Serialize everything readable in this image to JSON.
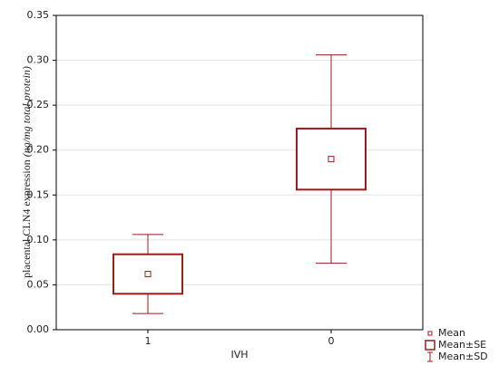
{
  "chart_data": {
    "type": "mean-error-box",
    "y_label": "placental CLN4 expression",
    "y_label_unit": "(ng/mg total protein)",
    "x_label": "IVH",
    "categories": [
      "1",
      "0"
    ],
    "series": [
      {
        "name": "Mean",
        "values": [
          0.062,
          0.19
        ]
      },
      {
        "name": "Mean±SE",
        "values": [
          0.022,
          0.034
        ]
      },
      {
        "name": "Mean±SD",
        "values": [
          0.044,
          0.116
        ]
      }
    ],
    "color": "#9b1c1c",
    "ylim": [
      0,
      0.35
    ],
    "yticks": [
      {
        "value": 0,
        "label": "0.00"
      },
      {
        "value": 0.05,
        "label": "0.05"
      },
      {
        "value": 0.1,
        "label": "0.10"
      },
      {
        "value": 0.15,
        "label": "0.15"
      },
      {
        "value": 0.2,
        "label": "0.20"
      },
      {
        "value": 0.25,
        "label": "0.25"
      },
      {
        "value": 0.3,
        "label": "0.30"
      },
      {
        "value": 0.35,
        "label": "0.35"
      }
    ],
    "grid": true
  }
}
